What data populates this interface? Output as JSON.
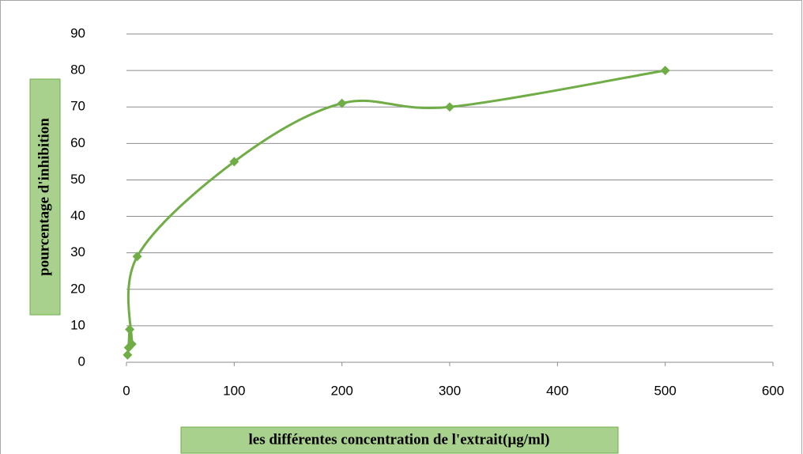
{
  "chart_data": {
    "type": "scatter",
    "xlabel": "les différentes concentration de l'extrait(µg/ml)",
    "ylabel": "pourcentage d'inhibition",
    "series": [
      {
        "name": "inhibition",
        "color": "#70ad47",
        "x": [
          1,
          2,
          3,
          5,
          10,
          100,
          200,
          300,
          500
        ],
        "values": [
          2,
          4,
          9,
          5,
          29,
          55,
          71,
          70,
          80
        ]
      }
    ],
    "xlim": [
      0,
      600
    ],
    "xticks": [
      0,
      100,
      200,
      300,
      400,
      500,
      600
    ],
    "ylim": [
      0,
      90
    ],
    "yticks": [
      0,
      10,
      20,
      30,
      40,
      50,
      60,
      70,
      80,
      90
    ],
    "grid": true,
    "smooth": true
  }
}
